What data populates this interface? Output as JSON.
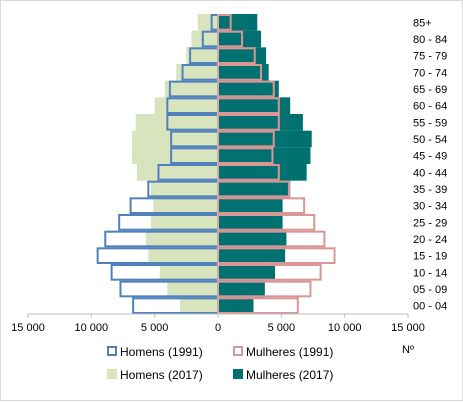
{
  "chart_data": {
    "type": "bar",
    "orientation": "horizontal",
    "layout": "population-pyramid",
    "x_unit_label": "Nº",
    "xlim": [
      -15000,
      15000
    ],
    "x_ticks": [
      -15000,
      -10000,
      -5000,
      0,
      5000,
      10000,
      15000
    ],
    "x_tick_labels": [
      "15 000",
      "10 000",
      "5 000",
      "0",
      "5 000",
      "10 000",
      "15 000"
    ],
    "grid": false,
    "legend_position": "bottom",
    "categories": [
      "00 - 04",
      "05 - 09",
      "10 - 14",
      "15 - 19",
      "20 - 24",
      "25 - 29",
      "30 - 34",
      "35 - 39",
      "40 - 44",
      "45 - 49",
      "50 - 54",
      "55 - 59",
      "60 - 64",
      "65 - 69",
      "70 - 74",
      "75 - 79",
      "80 - 84",
      "85+"
    ],
    "series": [
      {
        "name": "Homens (2017)",
        "side": "left",
        "style": "filled",
        "color": "#d7e4bd",
        "values": [
          3000,
          4000,
          4600,
          5500,
          5700,
          5300,
          5100,
          5300,
          6400,
          6800,
          6800,
          6500,
          5000,
          4200,
          3300,
          2500,
          2100,
          1600
        ]
      },
      {
        "name": "Mulheres (2017)",
        "side": "right",
        "style": "filled",
        "color": "#007070",
        "values": [
          2800,
          3700,
          4500,
          5300,
          5400,
          5100,
          5100,
          5700,
          7000,
          7300,
          7400,
          6700,
          5700,
          4800,
          4000,
          3800,
          3400,
          3100
        ]
      },
      {
        "name": "Homens (1991)",
        "side": "left",
        "style": "outline",
        "color": "#4f81bd",
        "values": [
          6700,
          7700,
          8400,
          9500,
          8900,
          7800,
          6900,
          5500,
          4700,
          3700,
          3700,
          4000,
          4000,
          3800,
          2800,
          2200,
          1200,
          500
        ]
      },
      {
        "name": "Mulheres (1991)",
        "side": "right",
        "style": "outline",
        "color": "#d99694",
        "values": [
          6300,
          7300,
          8100,
          9200,
          8400,
          7600,
          6800,
          5600,
          4800,
          4300,
          4400,
          4800,
          4800,
          4400,
          3400,
          2900,
          1900,
          1000
        ]
      }
    ]
  }
}
